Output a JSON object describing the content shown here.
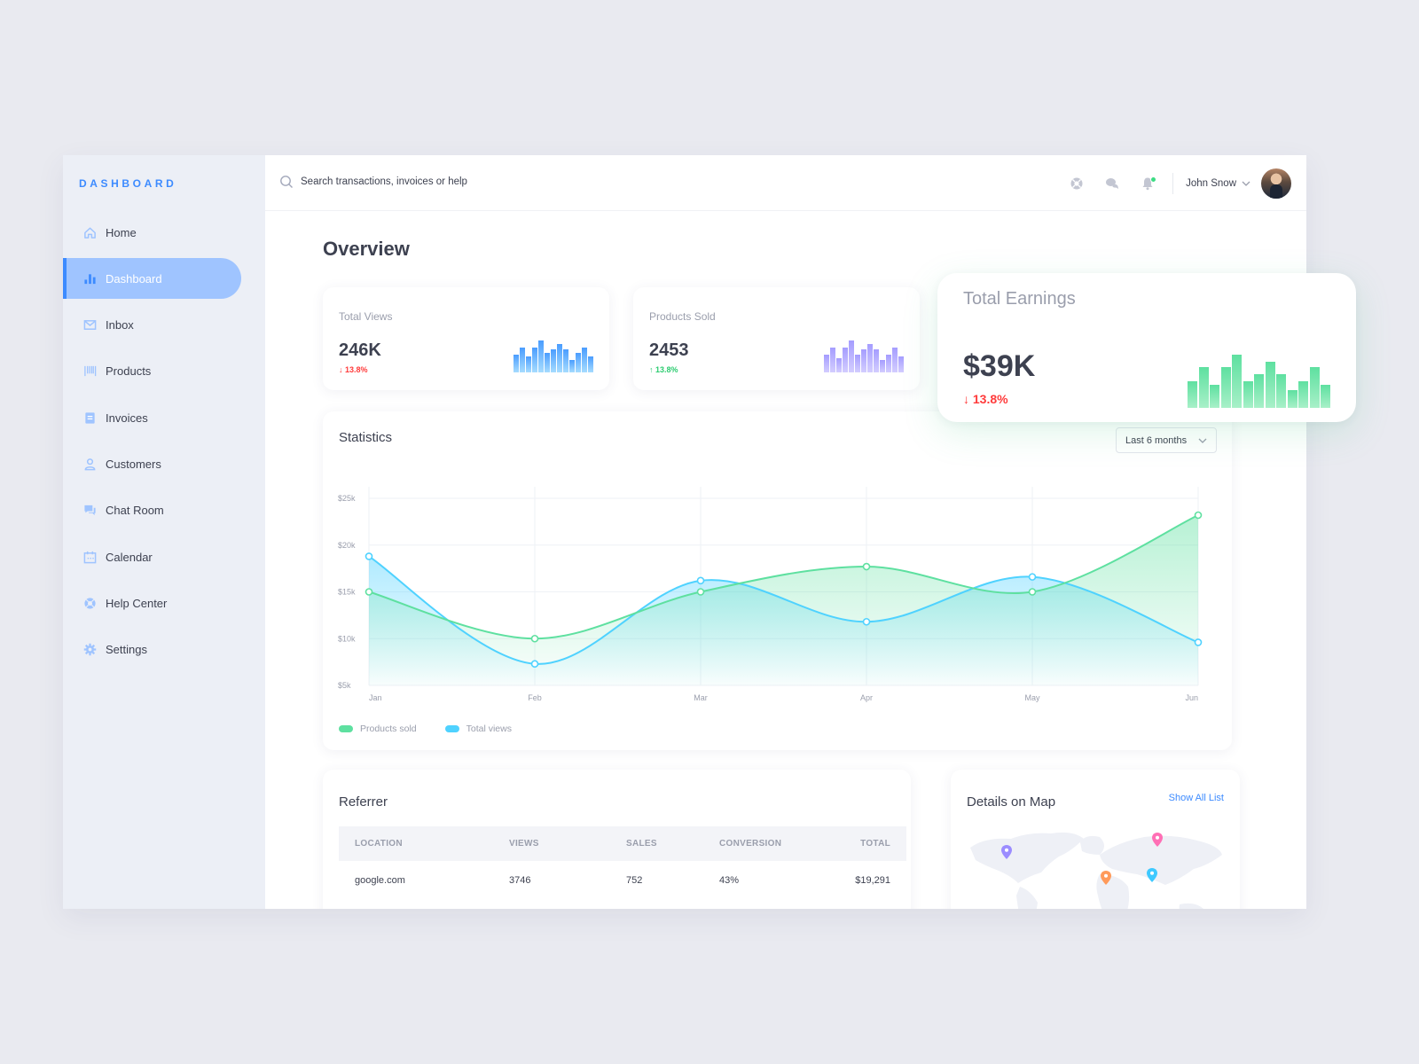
{
  "sidebar": {
    "brand": "DASHBOARD",
    "items": [
      {
        "label": "Home",
        "icon": "home-icon",
        "active": false
      },
      {
        "label": "Dashboard",
        "icon": "bar-chart-icon",
        "active": true
      },
      {
        "label": "Inbox",
        "icon": "mail-icon",
        "active": false
      },
      {
        "label": "Products",
        "icon": "barcode-icon",
        "active": false
      },
      {
        "label": "Invoices",
        "icon": "receipt-icon",
        "active": false
      },
      {
        "label": "Customers",
        "icon": "user-icon",
        "active": false
      },
      {
        "label": "Chat Room",
        "icon": "chat-icon",
        "active": false
      },
      {
        "label": "Calendar",
        "icon": "calendar-icon",
        "active": false
      },
      {
        "label": "Help Center",
        "icon": "lifebuoy-icon",
        "active": false
      },
      {
        "label": "Settings",
        "icon": "gear-icon",
        "active": false
      }
    ]
  },
  "topbar": {
    "search_placeholder": "Search transactions, invoices or help",
    "icons": [
      "lifebuoy-icon",
      "chat-icon",
      "bell-icon"
    ],
    "user_name": "John Snow"
  },
  "main": {
    "title": "Overview",
    "stats": [
      {
        "label": "Total Views",
        "value": "246K",
        "delta": "13.8%",
        "direction": "down",
        "bars": [
          20,
          28,
          18,
          28,
          36,
          22,
          26,
          32,
          26,
          14,
          22,
          28,
          18
        ],
        "color_top": "#4a9dff",
        "color_bottom": "#a6dcff"
      },
      {
        "label": "Products Sold",
        "value": "2453",
        "delta": "13.8%",
        "direction": "up",
        "bars": [
          20,
          28,
          16,
          28,
          36,
          20,
          26,
          32,
          26,
          14,
          20,
          28,
          18
        ],
        "color_top": "#a59dff",
        "color_bottom": "#d3cdff"
      }
    ],
    "earnings": {
      "label": "Total Earnings",
      "value": "$39K",
      "delta": "13.8%",
      "direction": "down",
      "bars": [
        30,
        46,
        26,
        46,
        60,
        30,
        38,
        52,
        38,
        20,
        30,
        46,
        26
      ],
      "color_top": "#5ee0a0",
      "color_bottom": "#a8f0c8"
    },
    "statistics": {
      "title": "Statistics",
      "range_select": "Last 6 months"
    },
    "referrer": {
      "title": "Referrer",
      "columns": [
        "LOCATION",
        "VIEWS",
        "SALES",
        "CONVERSION",
        "TOTAL"
      ],
      "rows": [
        [
          "google.com",
          "3746",
          "752",
          "43%",
          "$19,291"
        ]
      ]
    },
    "map": {
      "title": "Details on Map",
      "link": "Show All List",
      "pins": [
        {
          "color": "#9b8cff"
        },
        {
          "color": "#ff6fb5"
        },
        {
          "color": "#ff9a5a"
        },
        {
          "color": "#3ec9ff"
        }
      ]
    }
  },
  "chart_data": {
    "type": "area",
    "title": "Statistics",
    "x": [
      "Jan",
      "Feb",
      "Mar",
      "Apr",
      "May",
      "Jun"
    ],
    "series": [
      {
        "name": "Products sold",
        "color": "#5ee0a0",
        "values": [
          15000,
          10000,
          15000,
          17700,
          15000,
          23200
        ]
      },
      {
        "name": "Total views",
        "color": "#4fd2ff",
        "values": [
          18800,
          7300,
          16200,
          11800,
          16600,
          9600
        ]
      }
    ],
    "yticks": [
      "$5k",
      "$10k",
      "$15k",
      "$20k",
      "$25k"
    ],
    "ylim": [
      5000,
      25000
    ],
    "xlabel": "",
    "ylabel": "",
    "grid": true,
    "legend_position": "bottom-left"
  }
}
